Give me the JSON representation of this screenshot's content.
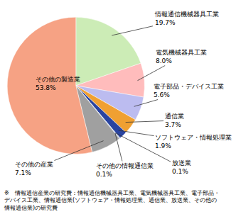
{
  "chart_data": {
    "type": "pie",
    "categories": [
      "情報通信機械器具工業",
      "電気機械器具工業",
      "電子部品・デバイス工業",
      "通信業",
      "ソフトウェア・情報処理業",
      "放送業",
      "その他の情報通信業",
      "その他の産業",
      "その他の製造業"
    ],
    "values": [
      19.7,
      8.0,
      5.6,
      3.7,
      1.9,
      0.1,
      0.1,
      7.1,
      53.8
    ],
    "value_labels": [
      "19.7%",
      "8.0%",
      "5.6%",
      "3.7%",
      "1.9%",
      "0.1%",
      "0.1%",
      "7.1%",
      "53.8%"
    ],
    "colors": [
      "#ccecb6",
      "#ffbcbc",
      "#bcbcf0",
      "#f0a032",
      "#2a44a0",
      "#a8ccf0",
      "#1e2e64",
      "#a0a0a0",
      "#f6a284"
    ],
    "data_labels": true,
    "note": "※　情報通信産業の研究費：情報通信機械器具工業、電気機械器具工業、電子部品・デバイス工業、情報通信業(ソフトウェア・情報処理業、通信業、放送業、その他の情報通信業)の研究費"
  }
}
